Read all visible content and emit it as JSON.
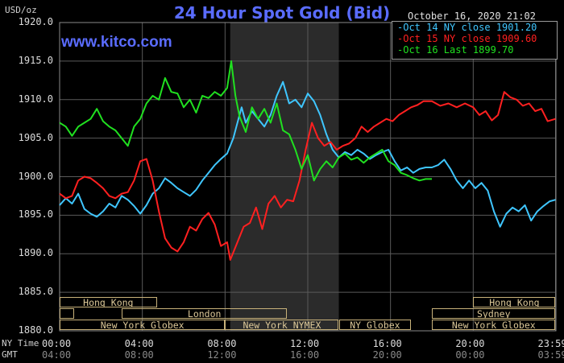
{
  "chart_data": {
    "type": "line",
    "title": "24 Hour Spot Gold (Bid)",
    "brand": "www.kitco.com",
    "y_unit_label": "USD/oz",
    "timestamp": "October 16, 2020 21:02",
    "ylim": [
      1880,
      1920
    ],
    "y_ticks": [
      "1920.0",
      "1915.0",
      "1910.0",
      "1905.0",
      "1900.0",
      "1895.0",
      "1890.0",
      "1885.0",
      "1880.0"
    ],
    "x_ticks_ny": [
      "00:00",
      "04:00",
      "08:00",
      "12:00",
      "16:00",
      "20:00",
      "23:59"
    ],
    "x_ticks_gmt": [
      "04:00",
      "08:00",
      "12:00",
      "16:00",
      "20:00",
      "00:00",
      "03:59"
    ],
    "row_labels": [
      "NY Time",
      "GMT"
    ],
    "grid": true,
    "legend_position": "top-right",
    "shaded_region_hours": [
      8.25,
      13.5
    ],
    "series": [
      {
        "name": "Oct 14 NY close 1901.20",
        "color": "#3fc6ff",
        "points": [
          [
            0,
            1896.3
          ],
          [
            0.3,
            1897.2
          ],
          [
            0.6,
            1896.5
          ],
          [
            0.9,
            1897.8
          ],
          [
            1.2,
            1895.8
          ],
          [
            1.5,
            1895.2
          ],
          [
            1.8,
            1894.8
          ],
          [
            2.1,
            1895.5
          ],
          [
            2.4,
            1896.5
          ],
          [
            2.7,
            1896.0
          ],
          [
            3.0,
            1897.5
          ],
          [
            3.3,
            1897.0
          ],
          [
            3.6,
            1896.2
          ],
          [
            3.9,
            1895.2
          ],
          [
            4.2,
            1896.3
          ],
          [
            4.5,
            1897.8
          ],
          [
            4.8,
            1898.5
          ],
          [
            5.1,
            1899.8
          ],
          [
            5.4,
            1899.2
          ],
          [
            5.7,
            1898.5
          ],
          [
            6.0,
            1898.0
          ],
          [
            6.3,
            1897.5
          ],
          [
            6.6,
            1898.3
          ],
          [
            6.9,
            1899.5
          ],
          [
            7.2,
            1900.5
          ],
          [
            7.5,
            1901.5
          ],
          [
            7.8,
            1902.3
          ],
          [
            8.1,
            1903.0
          ],
          [
            8.4,
            1905.0
          ],
          [
            8.6,
            1907.0
          ],
          [
            8.8,
            1909.0
          ],
          [
            9.0,
            1907.0
          ],
          [
            9.3,
            1908.5
          ],
          [
            9.6,
            1907.5
          ],
          [
            9.9,
            1906.5
          ],
          [
            10.2,
            1908.0
          ],
          [
            10.5,
            1910.5
          ],
          [
            10.8,
            1912.3
          ],
          [
            11.1,
            1909.5
          ],
          [
            11.4,
            1910.0
          ],
          [
            11.7,
            1909.0
          ],
          [
            12.0,
            1910.8
          ],
          [
            12.3,
            1909.8
          ],
          [
            12.6,
            1908.0
          ],
          [
            12.9,
            1905.5
          ],
          [
            13.2,
            1903.5
          ],
          [
            13.5,
            1902.5
          ],
          [
            13.8,
            1903.2
          ],
          [
            14.1,
            1902.8
          ],
          [
            14.4,
            1903.5
          ],
          [
            14.7,
            1903.0
          ],
          [
            15.0,
            1902.3
          ],
          [
            15.3,
            1902.8
          ],
          [
            15.6,
            1903.2
          ],
          [
            15.9,
            1903.5
          ],
          [
            16.2,
            1902.0
          ],
          [
            16.5,
            1900.8
          ],
          [
            16.8,
            1901.2
          ],
          [
            17.1,
            1900.5
          ],
          [
            17.4,
            1901.0
          ],
          [
            17.7,
            1901.2
          ],
          [
            18.0,
            1901.2
          ],
          [
            18.3,
            1901.5
          ],
          [
            18.6,
            1902.2
          ],
          [
            18.9,
            1901.0
          ],
          [
            19.2,
            1899.5
          ],
          [
            19.5,
            1898.5
          ],
          [
            19.8,
            1899.5
          ],
          [
            20.1,
            1898.5
          ],
          [
            20.4,
            1899.2
          ],
          [
            20.7,
            1898.2
          ],
          [
            21.0,
            1895.5
          ],
          [
            21.3,
            1893.5
          ],
          [
            21.6,
            1895.2
          ],
          [
            21.9,
            1896.0
          ],
          [
            22.2,
            1895.5
          ],
          [
            22.5,
            1896.3
          ],
          [
            22.8,
            1894.3
          ],
          [
            23.1,
            1895.5
          ],
          [
            23.4,
            1896.2
          ],
          [
            23.7,
            1896.8
          ],
          [
            23.98,
            1897.0
          ]
        ]
      },
      {
        "name": "Oct 15 NY close 1909.60",
        "color": "#ff2020",
        "points": [
          [
            0,
            1897.8
          ],
          [
            0.3,
            1897.2
          ],
          [
            0.6,
            1897.5
          ],
          [
            0.9,
            1899.5
          ],
          [
            1.2,
            1900.0
          ],
          [
            1.5,
            1899.8
          ],
          [
            1.8,
            1899.2
          ],
          [
            2.1,
            1898.5
          ],
          [
            2.4,
            1897.5
          ],
          [
            2.7,
            1897.2
          ],
          [
            3.0,
            1897.8
          ],
          [
            3.3,
            1898.0
          ],
          [
            3.6,
            1899.5
          ],
          [
            3.9,
            1902.0
          ],
          [
            4.2,
            1902.3
          ],
          [
            4.5,
            1899.5
          ],
          [
            4.8,
            1895.5
          ],
          [
            5.1,
            1892.0
          ],
          [
            5.4,
            1890.8
          ],
          [
            5.7,
            1890.3
          ],
          [
            6.0,
            1891.5
          ],
          [
            6.3,
            1893.5
          ],
          [
            6.6,
            1893.0
          ],
          [
            6.9,
            1894.5
          ],
          [
            7.2,
            1895.3
          ],
          [
            7.5,
            1893.8
          ],
          [
            7.8,
            1891.0
          ],
          [
            8.1,
            1891.5
          ],
          [
            8.25,
            1889.2
          ],
          [
            8.6,
            1891.5
          ],
          [
            8.9,
            1893.5
          ],
          [
            9.2,
            1894.0
          ],
          [
            9.5,
            1896.0
          ],
          [
            9.8,
            1893.2
          ],
          [
            10.1,
            1896.5
          ],
          [
            10.4,
            1897.5
          ],
          [
            10.7,
            1896.0
          ],
          [
            11.0,
            1897.0
          ],
          [
            11.3,
            1896.8
          ],
          [
            11.6,
            1899.5
          ],
          [
            11.9,
            1903.5
          ],
          [
            12.2,
            1907.0
          ],
          [
            12.5,
            1905.0
          ],
          [
            12.8,
            1904.0
          ],
          [
            13.1,
            1904.5
          ],
          [
            13.4,
            1903.5
          ],
          [
            13.7,
            1904.0
          ],
          [
            14.0,
            1904.3
          ],
          [
            14.3,
            1905.0
          ],
          [
            14.6,
            1906.5
          ],
          [
            14.9,
            1905.8
          ],
          [
            15.2,
            1906.5
          ],
          [
            15.5,
            1907.0
          ],
          [
            15.8,
            1907.5
          ],
          [
            16.1,
            1907.2
          ],
          [
            16.4,
            1908.0
          ],
          [
            16.7,
            1908.5
          ],
          [
            17.0,
            1909.0
          ],
          [
            17.3,
            1909.3
          ],
          [
            17.6,
            1909.8
          ],
          [
            18.0,
            1909.8
          ],
          [
            18.4,
            1909.2
          ],
          [
            18.8,
            1909.5
          ],
          [
            19.2,
            1909.0
          ],
          [
            19.6,
            1909.5
          ],
          [
            20.0,
            1909.0
          ],
          [
            20.3,
            1908.0
          ],
          [
            20.6,
            1908.5
          ],
          [
            20.9,
            1907.3
          ],
          [
            21.2,
            1908.0
          ],
          [
            21.5,
            1911.0
          ],
          [
            21.8,
            1910.3
          ],
          [
            22.1,
            1910.0
          ],
          [
            22.4,
            1909.2
          ],
          [
            22.7,
            1909.5
          ],
          [
            23.0,
            1908.5
          ],
          [
            23.3,
            1908.8
          ],
          [
            23.6,
            1907.2
          ],
          [
            23.98,
            1907.5
          ]
        ]
      },
      {
        "name": "Oct 16 Last 1899.70",
        "color": "#20e020",
        "points": [
          [
            0,
            1907.0
          ],
          [
            0.3,
            1906.5
          ],
          [
            0.6,
            1905.3
          ],
          [
            0.9,
            1906.5
          ],
          [
            1.2,
            1907.0
          ],
          [
            1.5,
            1907.5
          ],
          [
            1.8,
            1908.8
          ],
          [
            2.1,
            1907.2
          ],
          [
            2.4,
            1906.5
          ],
          [
            2.7,
            1906.0
          ],
          [
            3.0,
            1905.0
          ],
          [
            3.3,
            1904.0
          ],
          [
            3.6,
            1906.5
          ],
          [
            3.9,
            1907.5
          ],
          [
            4.2,
            1909.5
          ],
          [
            4.5,
            1910.5
          ],
          [
            4.8,
            1910.0
          ],
          [
            5.1,
            1912.8
          ],
          [
            5.4,
            1911.0
          ],
          [
            5.7,
            1910.8
          ],
          [
            6.0,
            1909.0
          ],
          [
            6.3,
            1910.0
          ],
          [
            6.6,
            1908.3
          ],
          [
            6.9,
            1910.5
          ],
          [
            7.2,
            1910.2
          ],
          [
            7.5,
            1911.0
          ],
          [
            7.8,
            1910.5
          ],
          [
            8.1,
            1911.5
          ],
          [
            8.3,
            1915.0
          ],
          [
            8.5,
            1910.5
          ],
          [
            8.7,
            1907.8
          ],
          [
            9.0,
            1905.8
          ],
          [
            9.3,
            1909.0
          ],
          [
            9.6,
            1907.5
          ],
          [
            9.9,
            1908.8
          ],
          [
            10.2,
            1907.0
          ],
          [
            10.5,
            1909.5
          ],
          [
            10.8,
            1906.0
          ],
          [
            11.1,
            1905.5
          ],
          [
            11.4,
            1903.5
          ],
          [
            11.7,
            1901.0
          ],
          [
            12.0,
            1902.8
          ],
          [
            12.3,
            1899.5
          ],
          [
            12.6,
            1901.0
          ],
          [
            12.9,
            1902.0
          ],
          [
            13.2,
            1901.2
          ],
          [
            13.5,
            1902.5
          ],
          [
            13.8,
            1903.0
          ],
          [
            14.1,
            1902.2
          ],
          [
            14.4,
            1902.5
          ],
          [
            14.7,
            1901.8
          ],
          [
            15.0,
            1902.5
          ],
          [
            15.3,
            1903.0
          ],
          [
            15.6,
            1903.5
          ],
          [
            15.9,
            1902.0
          ],
          [
            16.2,
            1901.5
          ],
          [
            16.5,
            1900.5
          ],
          [
            16.8,
            1900.2
          ],
          [
            17.1,
            1899.8
          ],
          [
            17.4,
            1899.5
          ],
          [
            17.7,
            1899.7
          ],
          [
            18.0,
            1899.7
          ]
        ]
      }
    ],
    "sessions": [
      {
        "label": "Hong Kong",
        "start": 0.0,
        "end": 4.7,
        "row": 0
      },
      {
        "label": "",
        "start": 0.0,
        "end": 0.7,
        "row": 1
      },
      {
        "label": "London",
        "start": 3.0,
        "end": 11.0,
        "row": 1
      },
      {
        "label": "New York Globex",
        "start": 0.0,
        "end": 8.0,
        "row": 2
      },
      {
        "label": "New York NYMEX",
        "start": 8.0,
        "end": 13.5,
        "row": 2
      },
      {
        "label": "NY Globex",
        "start": 13.5,
        "end": 17.0,
        "row": 2
      },
      {
        "label": "Hong Kong",
        "start": 20.0,
        "end": 23.98,
        "row": 0
      },
      {
        "label": "Sydney",
        "start": 18.0,
        "end": 23.98,
        "row": 1
      },
      {
        "label": "New York Globex",
        "start": 18.0,
        "end": 23.98,
        "row": 2
      }
    ]
  }
}
